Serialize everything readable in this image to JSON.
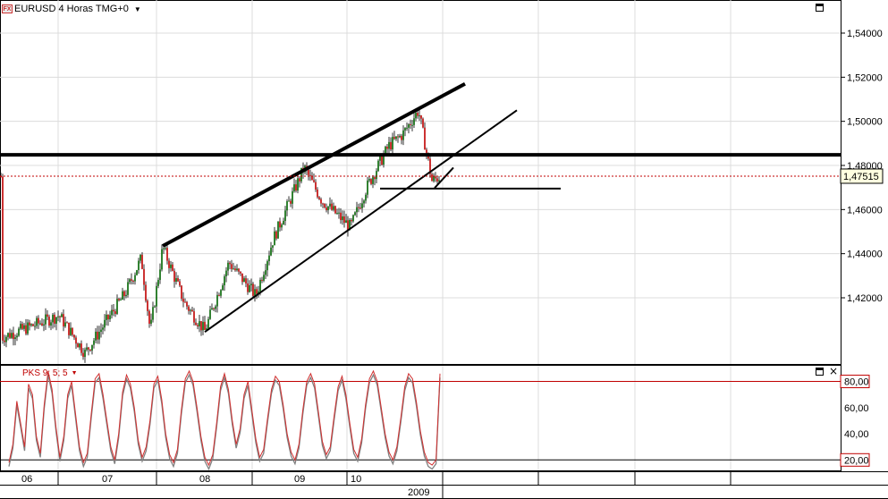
{
  "header": {
    "fx_badge": "FX",
    "title": "EURUSD 4 Horas TMG+0",
    "dropdown_glyph": "▼"
  },
  "indicator": {
    "label": "PKS 9; 5; 5",
    "dropdown_glyph": "▼",
    "close_glyph": "×"
  },
  "colors": {
    "up_candle": "#006400",
    "down_candle": "#c00000",
    "indicator_line": "#d03030",
    "indicator_shadow": "#808080",
    "level_line": "#c00000",
    "highlight_label": "#ffffe0"
  },
  "chart_data": [
    {
      "type": "candlestick",
      "title": "EURUSD 4 Horas TMG+0",
      "ylim": [
        1.39,
        1.555
      ],
      "y_ticks": [
        "1,54000",
        "1,52000",
        "1,50000",
        "1,48000",
        "1,46000",
        "1,44000",
        "1,42000"
      ],
      "y_tick_values": [
        1.54,
        1.52,
        1.5,
        1.48,
        1.46,
        1.44,
        1.42
      ],
      "x_tick_labels": [
        "06",
        "07",
        "08",
        "09",
        "10"
      ],
      "x_year_label": "2009",
      "current_price": 1.47515,
      "current_price_label": "1,47515",
      "close_path": [
        [
          "06",
          1.402
        ],
        [
          "06-mid",
          1.412
        ],
        [
          "07",
          1.395
        ],
        [
          "07-mid",
          1.422
        ],
        [
          "07-late",
          1.438
        ],
        [
          "07-end",
          1.405
        ],
        [
          "07/08",
          1.443
        ],
        [
          "08-early",
          1.418
        ],
        [
          "08",
          1.405
        ],
        [
          "08-mid",
          1.436
        ],
        [
          "08-late",
          1.421
        ],
        [
          "08/09",
          1.446
        ],
        [
          "09",
          1.479
        ],
        [
          "09-mid",
          1.464
        ],
        [
          "09-late",
          1.452
        ],
        [
          "09/10",
          1.47
        ],
        [
          "10",
          1.489
        ],
        [
          "10-mid",
          1.494
        ],
        [
          "10-high",
          1.505
        ],
        [
          "10-late",
          1.473
        ],
        [
          "10-end",
          1.475
        ]
      ],
      "drawings": {
        "resistance_level": 1.4848,
        "support_level": 1.4695,
        "upper_channel": [
          [
            "07/08",
            1.4435
          ],
          [
            "10-end",
            1.517
          ]
        ],
        "lower_channel": [
          [
            "08",
            1.4045
          ],
          [
            "11",
            1.505
          ]
        ]
      }
    },
    {
      "type": "line",
      "title": "PKS 9; 5; 5",
      "ylim": [
        12,
        92
      ],
      "y_ticks": [
        "80,00",
        "60,00",
        "40,00",
        "20,00"
      ],
      "y_tick_values": [
        80,
        60,
        40,
        20
      ],
      "levels": [
        80,
        20
      ],
      "series": [
        {
          "values": [
            18,
            32,
            65,
            48,
            30,
            78,
            70,
            38,
            25,
            62,
            88,
            74,
            45,
            22,
            38,
            70,
            80,
            55,
            30,
            18,
            25,
            55,
            82,
            86,
            70,
            50,
            30,
            20,
            40,
            72,
            85,
            78,
            60,
            35,
            22,
            30,
            50,
            78,
            84,
            66,
            40,
            24,
            18,
            28,
            58,
            82,
            88,
            80,
            60,
            38,
            22,
            16,
            24,
            48,
            76,
            86,
            74,
            50,
            32,
            44,
            70,
            80,
            58,
            36,
            22,
            28,
            52,
            74,
            84,
            80,
            62,
            40,
            26,
            20,
            32,
            58,
            80,
            86,
            78,
            56,
            34,
            24,
            30,
            54,
            76,
            84,
            70,
            48,
            28,
            22,
            36,
            62,
            82,
            88,
            80,
            60,
            40,
            26,
            20,
            30,
            52,
            76,
            86,
            82,
            64,
            42,
            26,
            18,
            16,
            20,
            86
          ]
        }
      ]
    }
  ]
}
